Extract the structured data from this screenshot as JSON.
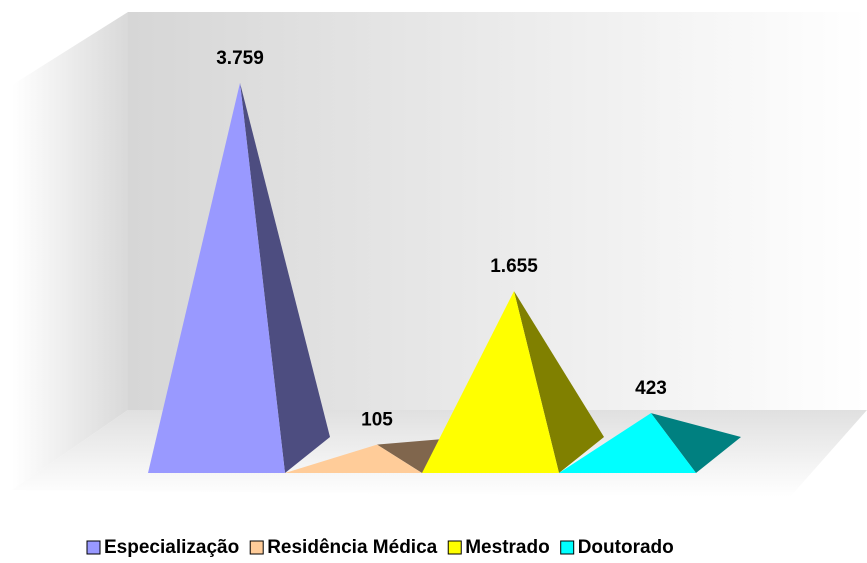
{
  "chart_data": {
    "type": "pyramid3d",
    "categories": [
      "Especialização",
      "Residência Médica",
      "Mestrado",
      "Doutorado"
    ],
    "values": [
      3759,
      105,
      1655,
      423
    ],
    "value_labels": [
      "3.759",
      "105",
      "1.655",
      "423"
    ],
    "colors": [
      "#9999ff",
      "#ffcc99",
      "#ffff00",
      "#00ffff"
    ],
    "legend": "bottom"
  }
}
